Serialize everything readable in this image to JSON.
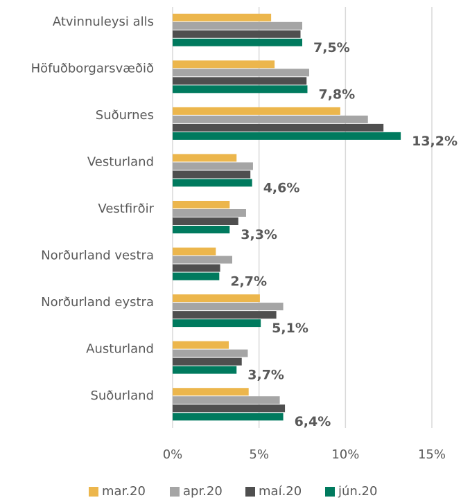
{
  "chart_data": {
    "type": "hbar",
    "categories": [
      "Atvinnuleysi alls",
      "Höfuðborgarsvæðið",
      "Suðurnes",
      "Vesturland",
      "Vestfirðir",
      "Norðurland vestra",
      "Norðurland eystra",
      "Austurland",
      "Suðurland"
    ],
    "series": [
      {
        "name": "mar.20",
        "color": "#ecb64c",
        "values": [
          5.7,
          5.9,
          9.7,
          3.7,
          3.3,
          2.5,
          5.05,
          3.25,
          4.4
        ]
      },
      {
        "name": "apr.20",
        "color": "#a5a5a5",
        "values": [
          7.5,
          7.9,
          11.3,
          4.65,
          4.25,
          3.45,
          6.4,
          4.35,
          6.2
        ]
      },
      {
        "name": "maí.20",
        "color": "#4f4f4f",
        "values": [
          7.4,
          7.75,
          12.2,
          4.5,
          3.8,
          2.75,
          6.0,
          4.0,
          6.5
        ]
      },
      {
        "name": "jún.20",
        "color": "#007a5e",
        "values": [
          7.5,
          7.8,
          13.2,
          4.6,
          3.3,
          2.7,
          5.1,
          3.7,
          6.4
        ],
        "value_labels": [
          "7,5%",
          "7,8%",
          "13,2%",
          "4,6%",
          "3,3%",
          "2,7%",
          "5,1%",
          "3,7%",
          "6,4%"
        ]
      }
    ],
    "xlim": [
      0,
      15
    ],
    "xticks": [
      {
        "value": 0,
        "label": "0%"
      },
      {
        "value": 5,
        "label": "5%"
      },
      {
        "value": 10,
        "label": "10%"
      },
      {
        "value": 15,
        "label": "15%"
      }
    ],
    "grid": true,
    "legend": "bottom"
  }
}
